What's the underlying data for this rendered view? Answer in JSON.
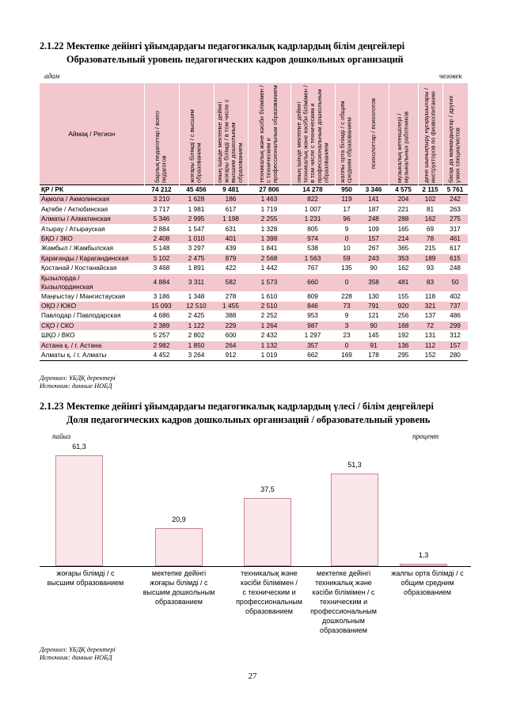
{
  "section1": {
    "number": "2.1.22",
    "title_kz": "Мектепке дейінгі ұйымдардағы педагогикалық кадрлардың білім деңгейлері",
    "title_ru": "Образовательный уровень педагогических кадров дошкольных организаций",
    "unit_kz": "адам",
    "unit_ru": "человек"
  },
  "table": {
    "region_header": "Аймақ / Регион",
    "columns": [
      "барлық педагогтар / всего педагогов",
      "жоғары білімді / с высшим образованием",
      "оның ішінде мектепке дейінгі жоғары білімді / в том числе с высшим дошкольным образованием",
      "техникалық және кәсіби білімімен / с техническим и профессиональным образованием",
      "оның ішінде мектепке дейінгі техникалық және кәсіби білімімен / в том числе с техническим и профессиональным дошкольным образованием",
      "жалпы орта білімді / с общим средним образованием",
      "психологтар / психологов",
      "музыкалық жетекшілері / музыкальных работников",
      "дене шынықтыру нұсқаушылары / инструкторов по физвоспитанию",
      "басқа да мамандықтар / других узких специалистов"
    ],
    "rows": [
      {
        "region": "ҚР / РК",
        "values": [
          "74 212",
          "45 456",
          "9 481",
          "27 806",
          "14 278",
          "950",
          "3 346",
          "4 575",
          "2 115",
          "5 761"
        ]
      },
      {
        "region": "Ақмола / Акмолинская",
        "values": [
          "3 210",
          "1 628",
          "186",
          "1 463",
          "822",
          "119",
          "141",
          "204",
          "102",
          "242"
        ]
      },
      {
        "region": "Ақтөбе / Актюбинская",
        "values": [
          "3 717",
          "1 981",
          "617",
          "1 719",
          "1 007",
          "17",
          "187",
          "221",
          "81",
          "263"
        ]
      },
      {
        "region": "Алматы / Алматинская",
        "values": [
          "5 346",
          "2 995",
          "1 198",
          "2 255",
          "1 231",
          "96",
          "248",
          "288",
          "162",
          "275"
        ]
      },
      {
        "region": "Атырау / Атырауская",
        "values": [
          "2 884",
          "1 547",
          "631",
          "1 328",
          "805",
          "9",
          "109",
          "165",
          "69",
          "317"
        ]
      },
      {
        "region": "БҚО / ЗКО",
        "values": [
          "2 408",
          "1 010",
          "401",
          "1 398",
          "974",
          "0",
          "157",
          "214",
          "78",
          "461"
        ]
      },
      {
        "region": "Жамбыл / Жамбылская",
        "values": [
          "5 148",
          "3 297",
          "439",
          "1 841",
          "538",
          "10",
          "267",
          "365",
          "215",
          "617"
        ]
      },
      {
        "region": "Қарағанды / Карагандинская",
        "values": [
          "5 102",
          "2 475",
          "879",
          "2 568",
          "1 563",
          "59",
          "243",
          "353",
          "189",
          "615"
        ]
      },
      {
        "region": "Қостанай / Костанайская",
        "values": [
          "3 468",
          "1 891",
          "422",
          "1 442",
          "767",
          "135",
          "90",
          "162",
          "93",
          "248"
        ]
      },
      {
        "region_l1": "Қызылорда /",
        "region_l2": "Кызылординская",
        "values": [
          "4 884",
          "3 311",
          "582",
          "1 573",
          "660",
          "0",
          "358",
          "481",
          "83",
          "50"
        ]
      },
      {
        "region": "Маңғыстау / Мангистауская",
        "values": [
          "3 186",
          "1 348",
          "278",
          "1 610",
          "809",
          "228",
          "130",
          "155",
          "118",
          "402"
        ]
      },
      {
        "region": "ОҚО / ЮКО",
        "values": [
          "15 093",
          "12 510",
          "1 455",
          "2 510",
          "846",
          "73",
          "791",
          "920",
          "321",
          "737"
        ]
      },
      {
        "region": "Павлодар / Павлодарская",
        "values": [
          "4 686",
          "2 425",
          "388",
          "2 252",
          "953",
          "9",
          "121",
          "256",
          "137",
          "486"
        ]
      },
      {
        "region": "СҚО / СКО",
        "values": [
          "2 389",
          "1 122",
          "229",
          "1 264",
          "987",
          "3",
          "90",
          "168",
          "72",
          "299"
        ]
      },
      {
        "region": "ШҚО / ВКО",
        "values": [
          "5 257",
          "2 802",
          "600",
          "2 432",
          "1 297",
          "23",
          "145",
          "192",
          "131",
          "312"
        ]
      },
      {
        "region": "Астана қ. / г. Астана",
        "values": [
          "2 982",
          "1 850",
          "264",
          "1 132",
          "357",
          "0",
          "91",
          "136",
          "112",
          "157"
        ]
      },
      {
        "region": "Алматы қ. / г. Алматы",
        "values": [
          "4 452",
          "3 264",
          "912",
          "1 019",
          "662",
          "169",
          "178",
          "295",
          "152",
          "280"
        ]
      }
    ]
  },
  "source1": {
    "kz": "Дереккөз: ҰБДҚ деректері",
    "ru": "Источник: данные НОБД"
  },
  "section2": {
    "number": "2.1.23",
    "title_kz": "Мектепке дейінгі ұйымдардағы педагогикалық кадрлардың үлесі / білім деңгейлері",
    "title_ru": "Доля педагогических кадров дошкольных организаций / образовательный уровень",
    "unit_kz": "пайыз",
    "unit_ru": "процент"
  },
  "chart_data": {
    "type": "bar",
    "categories": [
      "жоғары білімді / с высшим образованием",
      "мектепке дейінгі жоғары білімді / с высшим дошкольным образованием",
      "техникалық және кәсіби білімімен / с техническим и профессиональным образованием",
      "мектепке дейінгі техникалық және кәсіби білімімен / с техническим и профессиональным дошкольным образованием",
      "жалпы орта білімді / с общим средним образованием"
    ],
    "category_lines": [
      [
        "жоғары білімді  / с",
        "высшим образованием"
      ],
      [
        "мектепке дейінгі",
        "жоғары білімді / с",
        "высшим дошкольным",
        "образованием"
      ],
      [
        "техникалық және",
        "кәсіби білімімен /",
        "с техническим и",
        "профессиональным",
        "образованием"
      ],
      [
        "мектепке дейінгі",
        "техникалық және",
        "кәсіби білімімен / с",
        "техническим и",
        "профессиональным",
        "дошкольным",
        "образованием"
      ],
      [
        "жалпы орта білімді  / с",
        "общим средним",
        "образованием"
      ]
    ],
    "values": [
      61.3,
      20.9,
      37.5,
      51.3,
      1.3
    ],
    "value_labels": [
      "61,3",
      "20,9",
      "37,5",
      "51,3",
      "1,3"
    ],
    "ylim": [
      0,
      70
    ],
    "bar_color": "#fbe7e9",
    "bar_border": "#c9848e"
  },
  "source2": {
    "kz": "Дереккөз: ҰБДҚ деректері",
    "ru": "Источник: данные НОБД"
  },
  "page_number": "27"
}
